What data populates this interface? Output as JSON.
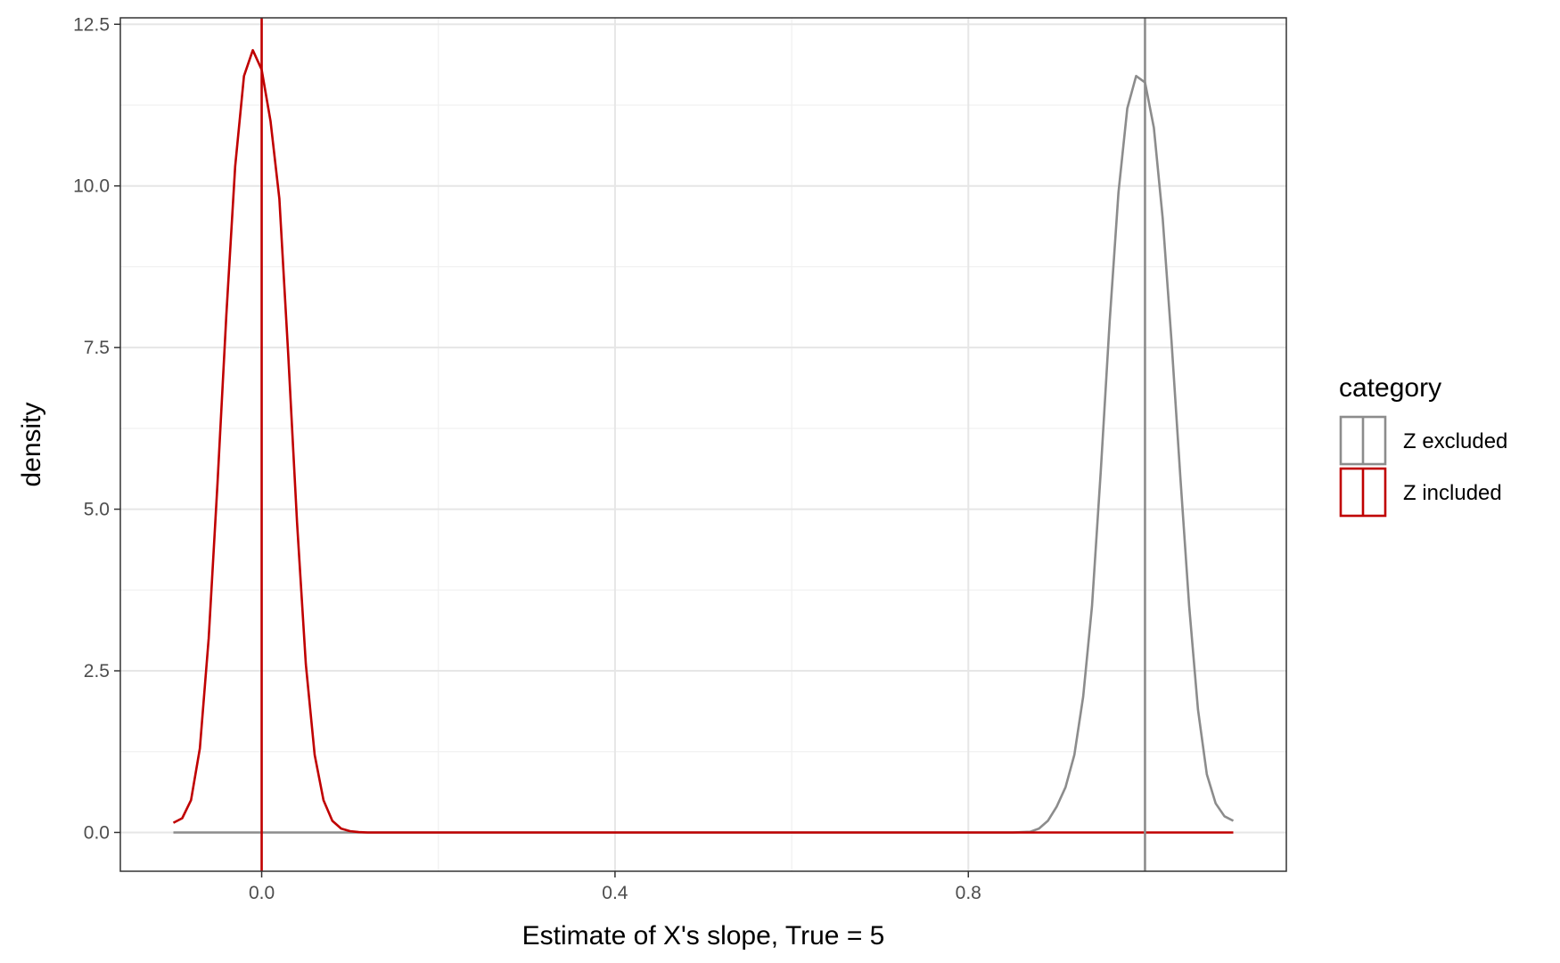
{
  "chart_data": {
    "type": "line",
    "xlabel": "Estimate of X's slope, True = 5",
    "ylabel": "density",
    "xlim": [
      -0.16,
      1.16
    ],
    "ylim": [
      -0.6,
      12.6
    ],
    "x_ticks": [
      0.0,
      0.4,
      0.8
    ],
    "x_tick_labels": [
      "0.0",
      "0.4",
      "0.8"
    ],
    "y_ticks": [
      0.0,
      2.5,
      5.0,
      7.5,
      10.0,
      12.5
    ],
    "y_tick_labels": [
      "0.0",
      "2.5",
      "5.0",
      "7.5",
      "10.0",
      "12.5"
    ],
    "grid": true,
    "legend": {
      "title": "category",
      "position": "right"
    },
    "series": [
      {
        "name": "Z excluded",
        "color": "#8c8c8c",
        "vline": 1.0,
        "x": [
          -0.1,
          0.85,
          0.87,
          0.88,
          0.89,
          0.9,
          0.91,
          0.92,
          0.93,
          0.94,
          0.95,
          0.96,
          0.97,
          0.98,
          0.99,
          1.0,
          1.01,
          1.02,
          1.03,
          1.04,
          1.05,
          1.06,
          1.07,
          1.08,
          1.09,
          1.1
        ],
        "y": [
          0.0,
          0.0,
          0.01,
          0.06,
          0.18,
          0.4,
          0.7,
          1.2,
          2.1,
          3.5,
          5.6,
          7.9,
          9.9,
          11.2,
          11.7,
          11.6,
          10.9,
          9.5,
          7.6,
          5.5,
          3.5,
          1.9,
          0.9,
          0.45,
          0.25,
          0.18
        ]
      },
      {
        "name": "Z included",
        "color": "#c00000",
        "vline": 0.0,
        "x": [
          -0.1,
          -0.09,
          -0.08,
          -0.07,
          -0.06,
          -0.05,
          -0.04,
          -0.03,
          -0.02,
          -0.01,
          0.0,
          0.01,
          0.02,
          0.03,
          0.04,
          0.05,
          0.06,
          0.07,
          0.08,
          0.09,
          0.1,
          0.11,
          0.12,
          0.15,
          1.1
        ],
        "y": [
          0.15,
          0.22,
          0.5,
          1.3,
          3.0,
          5.4,
          8.0,
          10.3,
          11.7,
          12.1,
          11.8,
          11.0,
          9.8,
          7.4,
          4.8,
          2.6,
          1.2,
          0.5,
          0.18,
          0.06,
          0.02,
          0.005,
          0.0,
          0.0,
          0.0
        ]
      }
    ]
  }
}
